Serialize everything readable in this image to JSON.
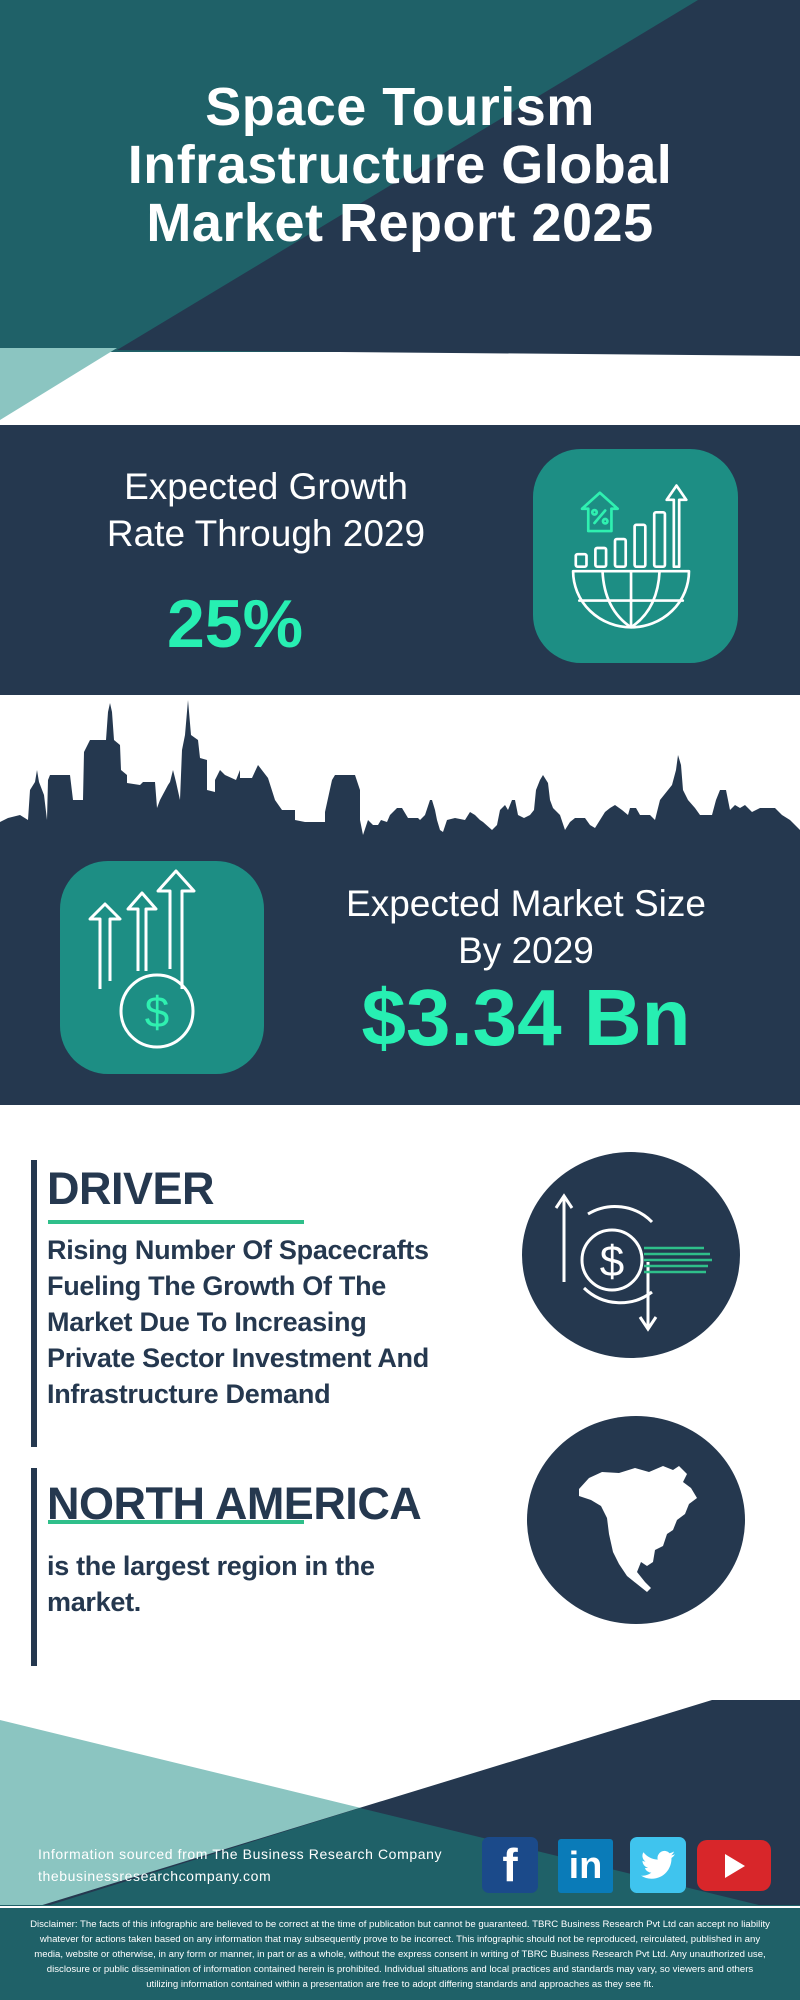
{
  "header": {
    "title_lines": [
      "Space Tourism",
      "Infrastructure Global",
      "Market Report 2025"
    ]
  },
  "growth": {
    "label_lines": [
      "Expected Growth",
      "Rate Through 2029"
    ],
    "value": "25%",
    "icon": "globe-growth-chart-icon"
  },
  "market_size": {
    "label_lines": [
      "Expected Market Size",
      "By 2029"
    ],
    "value": "$3.34 Bn",
    "icon": "money-growth-arrows-icon"
  },
  "driver": {
    "heading": "DRIVER",
    "text_lines": [
      "Rising Number Of Spacecrafts",
      "Fueling The Growth Of The",
      "Market Due To Increasing",
      "Private Sector Investment And",
      "Infrastructure Demand"
    ],
    "icon": "dollar-exchange-icon"
  },
  "region": {
    "heading": "NORTH AMERICA",
    "text_lines": [
      "is the largest region in the",
      "market."
    ],
    "icon": "north-america-map-icon"
  },
  "footer": {
    "source": "Information sourced from The Business Research Company",
    "website": "thebusinessresearchcompany.com",
    "social": [
      {
        "name": "facebook",
        "glyph": "f",
        "color": "#1b4a8a"
      },
      {
        "name": "linkedin",
        "glyph": "in",
        "color": "#0a7bb8"
      },
      {
        "name": "twitter",
        "glyph": "twitter-bird",
        "color": "#3fc4ee"
      },
      {
        "name": "youtube",
        "glyph": "play",
        "color": "#d8262a"
      }
    ]
  },
  "disclaimer": "Disclaimer: The facts of this infographic are believed to be correct at the time of publication but cannot be guaranteed. TBRC Business Research Pvt Ltd can accept no liability whatever for actions taken based on any information that may subsequently prove to be incorrect. This infographic should not be reproduced, reirculated, published in any media, website or otherwise, in any form or manner, in part or as a whole, without the express consent in writing of TBRC Business Research Pvt Ltd. Any unauthorized use, disclosure or public dissemination of information contained herein is prohibited. Individual situations and local practices and standards may vary, so viewers and others utilizing information contained within a presentation are free to adopt differing standards and approaches as they see fit.",
  "colors": {
    "navy": "#25384f",
    "teal": "#1f6168",
    "light_teal": "#8bc5c1",
    "accent": "#27efb2",
    "icon_box": "#1d8e84"
  }
}
